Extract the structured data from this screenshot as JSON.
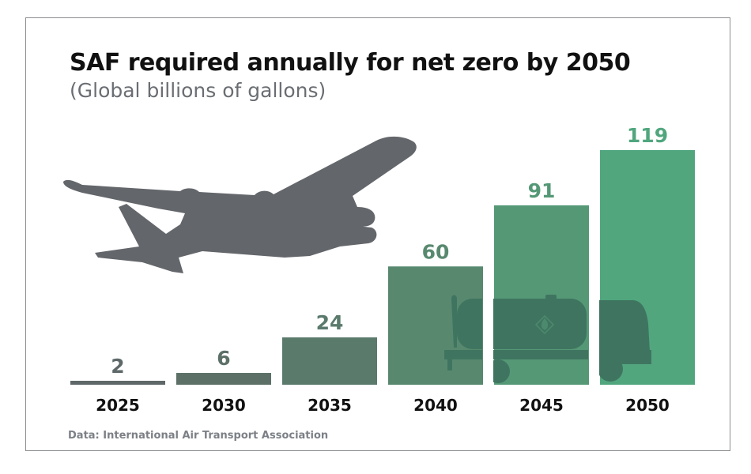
{
  "header": {
    "title": "SAF required annually for net zero by 2050",
    "subtitle": "(Global billions of gallons)"
  },
  "footer": {
    "source": "Data: International Air Transport Association"
  },
  "illustrations": {
    "airplane": "airplane-silhouette-icon",
    "tanker": "fuel-tanker-truck-icon",
    "airplane_color": "#63666a",
    "tanker_color": "#3f7560"
  },
  "chart_data": {
    "type": "bar",
    "title": "SAF required annually for net zero by 2050",
    "subtitle": "(Global billions of gallons)",
    "xlabel": "",
    "ylabel": "Global billions of gallons",
    "categories": [
      "2025",
      "2030",
      "2035",
      "2040",
      "2045",
      "2050"
    ],
    "values": [
      2,
      6,
      24,
      60,
      91,
      119
    ],
    "value_labels": [
      "2",
      "6",
      "24",
      "60",
      "91",
      "119"
    ],
    "ylim": [
      0,
      119
    ],
    "grid": false,
    "legend": "none",
    "bar_colors": [
      "#5e6869",
      "#5c7067",
      "#5a7a6c",
      "#58896f",
      "#559876",
      "#51a67e"
    ],
    "label_colors": [
      "#5e6869",
      "#5c7067",
      "#5a7a6c",
      "#58896f",
      "#559876",
      "#51a67e"
    ],
    "source": "Data: International Air Transport Association"
  }
}
